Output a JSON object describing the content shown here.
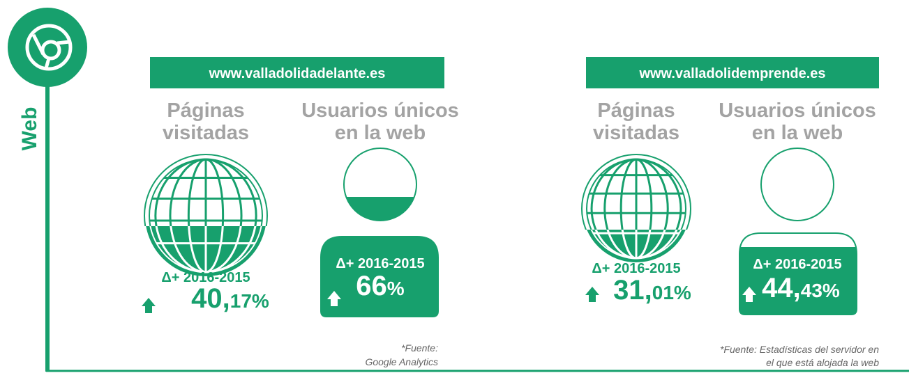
{
  "side_label": "Web",
  "sites": [
    {
      "url": "www.valladolidadelante.es",
      "metrics": [
        {
          "heading": [
            "Páginas",
            "visitadas"
          ],
          "delta": "Δ+ 2016-2015",
          "big": "40,",
          "small": "17%"
        },
        {
          "heading": [
            "Usuarios únicos",
            "en la web"
          ],
          "delta": "Δ+ 2016-2015",
          "big": "66",
          "small": "%"
        }
      ],
      "source": [
        "*Fuente:",
        "Google Analytics"
      ]
    },
    {
      "url": "www.valladolidemprende.es",
      "metrics": [
        {
          "heading": [
            "Páginas",
            "visitadas"
          ],
          "delta": "Δ+ 2016-2015",
          "big": "31,",
          "small": "01%"
        },
        {
          "heading": [
            "Usuarios únicos",
            "en la web"
          ],
          "delta": "Δ+ 2016-2015",
          "big": "44,",
          "small": "43%"
        }
      ],
      "source": [
        "*Fuente: Estadísticas del servidor en",
        "el que está alojada la web"
      ]
    }
  ]
}
